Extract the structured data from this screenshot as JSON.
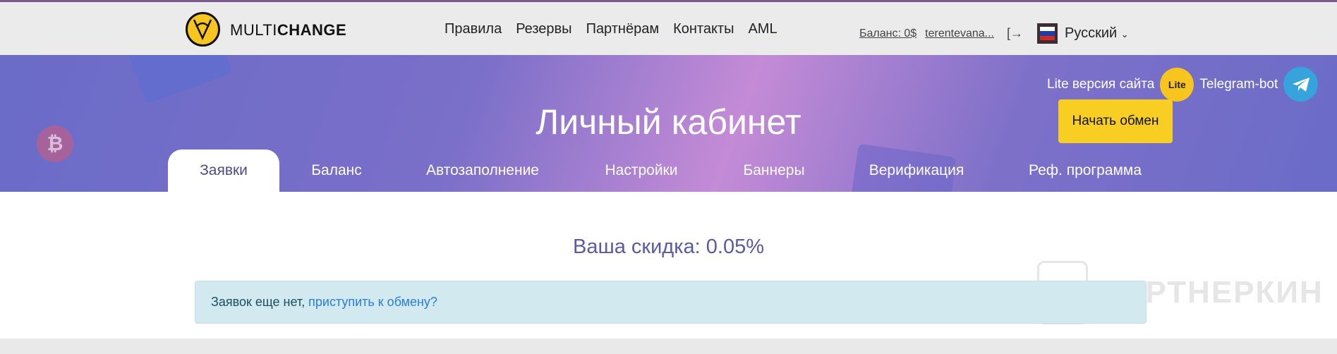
{
  "header": {
    "brand_light": "MULTI",
    "brand_bold": "CHANGE",
    "nav": [
      "Правила",
      "Резервы",
      "Партнёрам",
      "Контакты",
      "AML"
    ],
    "balance": "Баланс: 0$",
    "user": "terentevana...",
    "language": "Русский"
  },
  "banner": {
    "title": "Личный кабинет",
    "lite_label": "Lite версия сайта",
    "lite_badge": "Lite",
    "telegram_label": "Telegram-bot",
    "start_button": "Начать обмен"
  },
  "tabs": [
    "Заявки",
    "Баланс",
    "Автозаполнение",
    "Настройки",
    "Баннеры",
    "Верификация",
    "Реф. программа"
  ],
  "main": {
    "discount": "Ваша скидка: 0.05%",
    "alert_text": "Заявок еще нет,",
    "alert_link": "приступить к обмену?"
  },
  "watermark": "ПАРТНЕРКИН",
  "colors": {
    "accent": "#f9ce23",
    "banner": "#6a6cc8",
    "discount": "#5b5aa5",
    "alert_bg": "#d1e9ef"
  }
}
